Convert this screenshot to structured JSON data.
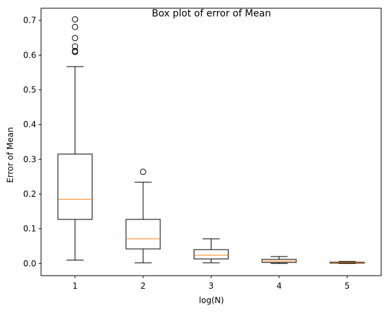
{
  "chart_data": {
    "type": "box",
    "title": "Box plot of error of Mean",
    "xlabel": "log(N)",
    "ylabel": "Error of Mean",
    "categories": [
      "1",
      "2",
      "3",
      "4",
      "5"
    ],
    "ylim": [
      -0.035,
      0.735
    ],
    "yticks": [
      0.0,
      0.1,
      0.2,
      0.3,
      0.4,
      0.5,
      0.6,
      0.7
    ],
    "ytick_labels": [
      "0.0",
      "0.1",
      "0.2",
      "0.3",
      "0.4",
      "0.5",
      "0.6",
      "0.7"
    ],
    "grid": false,
    "boxes": [
      {
        "category": "1",
        "whisker_low": 0.01,
        "q1": 0.127,
        "median": 0.185,
        "q3": 0.315,
        "whisker_high": 0.567,
        "outliers": [
          0.609,
          0.612,
          0.625,
          0.649,
          0.681,
          0.703
        ]
      },
      {
        "category": "2",
        "whisker_low": 0.002,
        "q1": 0.042,
        "median": 0.071,
        "q3": 0.127,
        "whisker_high": 0.234,
        "outliers": [
          0.264
        ]
      },
      {
        "category": "3",
        "whisker_low": 0.002,
        "q1": 0.013,
        "median": 0.024,
        "q3": 0.04,
        "whisker_high": 0.071,
        "outliers": []
      },
      {
        "category": "4",
        "whisker_low": 0.0,
        "q1": 0.003,
        "median": 0.007,
        "q3": 0.012,
        "whisker_high": 0.02,
        "outliers": []
      },
      {
        "category": "5",
        "whisker_low": 0.0,
        "q1": 0.001,
        "median": 0.003,
        "q3": 0.004,
        "whisker_high": 0.006,
        "outliers": []
      }
    ],
    "colors": {
      "box": "#000000",
      "median": "#ff7f0e",
      "background": "#ffffff",
      "axes": "#000000"
    }
  }
}
